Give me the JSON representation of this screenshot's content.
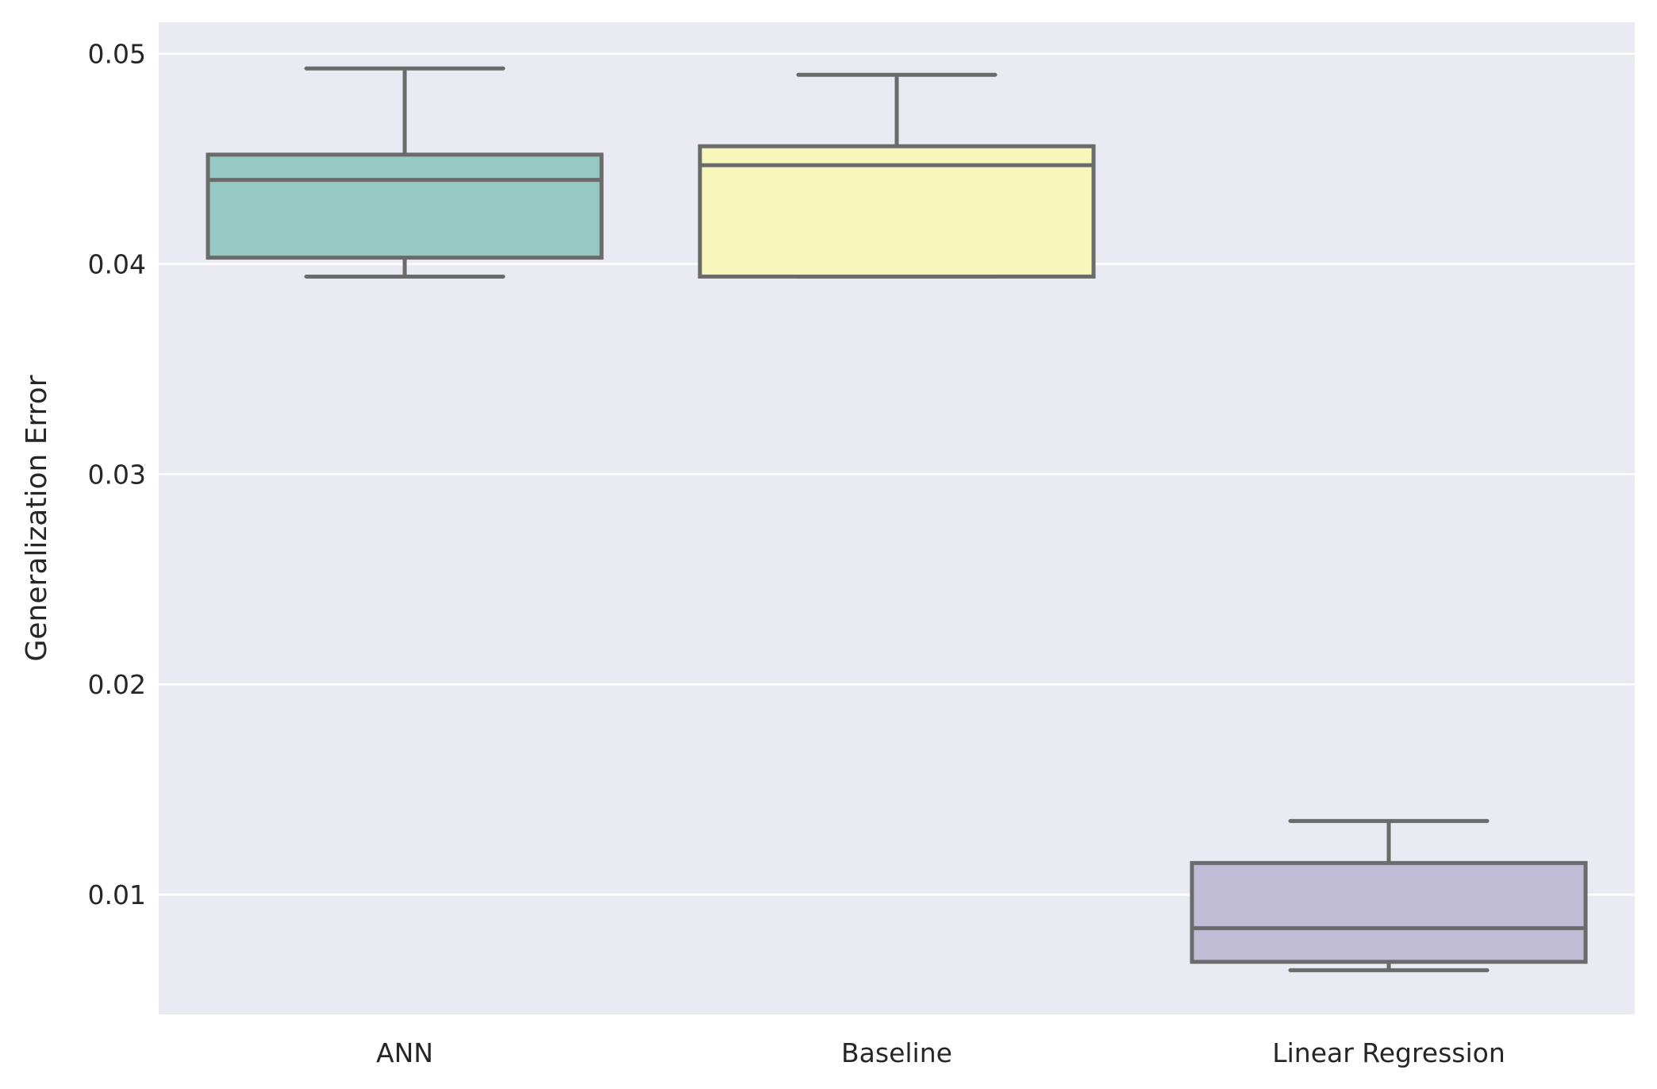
{
  "chart_data": {
    "type": "box",
    "ylabel": "Generalization Error",
    "xlabel": "",
    "ylim": [
      0.0043,
      0.0515
    ],
    "yticks": [
      0.01,
      0.02,
      0.03,
      0.04,
      0.05
    ],
    "ytick_labels": [
      "0.01",
      "0.02",
      "0.03",
      "0.04",
      "0.05"
    ],
    "grid": true,
    "colors": {
      "plot_background": "#eaeaf2",
      "grid": "#ffffff",
      "box_edge": "#6b6b6b"
    },
    "categories": [
      "ANN",
      "Baseline",
      "Linear Regression"
    ],
    "boxes": [
      {
        "category": "ANN",
        "whisker_low": 0.0394,
        "q1": 0.0403,
        "median": 0.044,
        "q3": 0.0452,
        "whisker_high": 0.0493,
        "color": "#96c9c2"
      },
      {
        "category": "Baseline",
        "whisker_low": 0.0394,
        "q1": 0.0394,
        "median": 0.0447,
        "q3": 0.0456,
        "whisker_high": 0.049,
        "color": "#f7f7bc"
      },
      {
        "category": "Linear Regression",
        "whisker_low": 0.0064,
        "q1": 0.0068,
        "median": 0.0084,
        "q3": 0.0115,
        "whisker_high": 0.0135,
        "color": "#c0bcd6"
      }
    ]
  }
}
